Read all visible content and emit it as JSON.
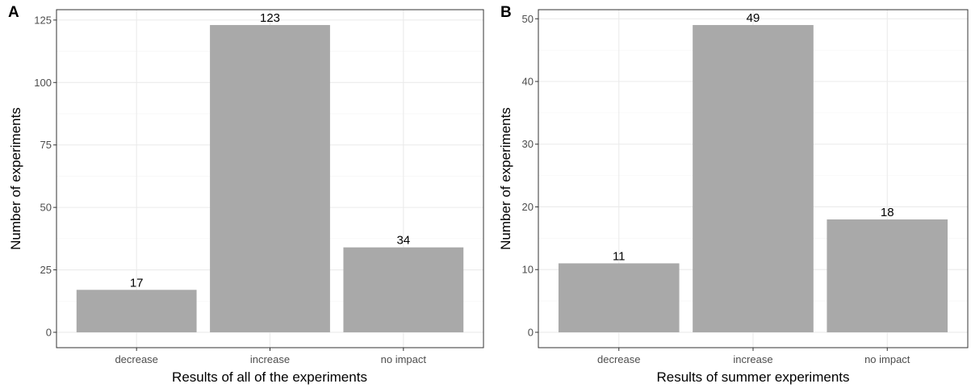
{
  "colors": {
    "bar": "#a9a9a9",
    "panel_border": "#333333",
    "gridline": "#ebebeb",
    "tick_text": "#4d4d4d"
  },
  "chart_data": [
    {
      "type": "bar",
      "panel": "A",
      "categories": [
        "decrease",
        "increase",
        "no impact"
      ],
      "values": [
        17,
        123,
        34
      ],
      "data_labels": [
        "17",
        "123",
        "34"
      ],
      "xlabel": "Results of all of the experiments",
      "ylabel": "Number of experiments",
      "ylim": [
        -6.15,
        129.15
      ],
      "yticks": [
        0,
        25,
        50,
        75,
        100,
        125
      ],
      "grid": true,
      "legend": "none"
    },
    {
      "type": "bar",
      "panel": "B",
      "categories": [
        "decrease",
        "increase",
        "no impact"
      ],
      "values": [
        11,
        49,
        18
      ],
      "data_labels": [
        "11",
        "49",
        "18"
      ],
      "xlabel": "Results of summer experiments",
      "ylabel": "Number of experiments",
      "ylim": [
        -2.45,
        51.45
      ],
      "yticks": [
        0,
        10,
        20,
        30,
        40,
        50
      ],
      "grid": true,
      "legend": "none"
    }
  ]
}
